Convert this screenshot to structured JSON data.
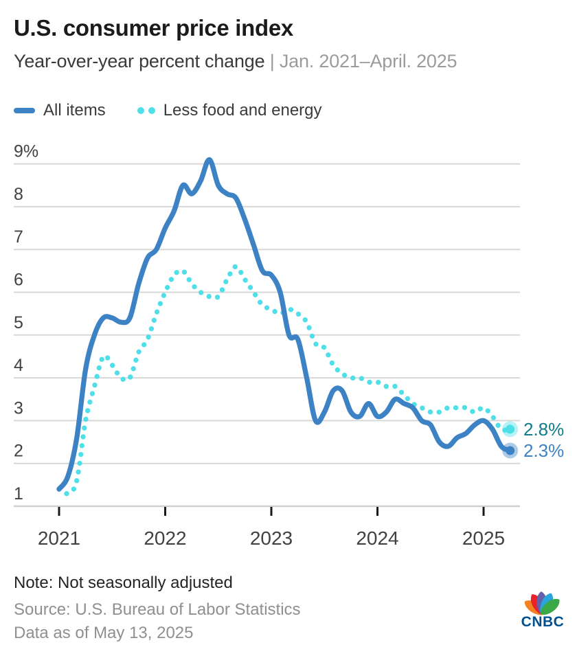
{
  "header": {
    "title": "U.S. consumer price index",
    "subtitle": "Year-over-year percent change",
    "subtitle_separator": " | ",
    "subtitle_range": "Jan. 2021–April. 2025"
  },
  "legend": {
    "items": [
      {
        "label": "All items",
        "color": "#3D82C4",
        "swatch": "line"
      },
      {
        "label": "Less food and energy",
        "color": "#4EDFE8",
        "swatch": "dots"
      }
    ]
  },
  "chart_data": {
    "type": "line",
    "title": "U.S. consumer price index",
    "ylabel": "Year-over-year percent change (%)",
    "grid": "horizontal",
    "ylim": [
      1,
      9.2
    ],
    "y_ticks": [
      1,
      2,
      3,
      4,
      5,
      6,
      7,
      8,
      9
    ],
    "y_tick_labels": [
      "1",
      "2",
      "3",
      "4",
      "5",
      "6",
      "7",
      "8",
      "9%"
    ],
    "x_tick_labels": [
      "2021",
      "2022",
      "2023",
      "2024",
      "2025"
    ],
    "x": [
      "2021-01",
      "2021-02",
      "2021-03",
      "2021-04",
      "2021-05",
      "2021-06",
      "2021-07",
      "2021-08",
      "2021-09",
      "2021-10",
      "2021-11",
      "2021-12",
      "2022-01",
      "2022-02",
      "2022-03",
      "2022-04",
      "2022-05",
      "2022-06",
      "2022-07",
      "2022-08",
      "2022-09",
      "2022-10",
      "2022-11",
      "2022-12",
      "2023-01",
      "2023-02",
      "2023-03",
      "2023-04",
      "2023-05",
      "2023-06",
      "2023-07",
      "2023-08",
      "2023-09",
      "2023-10",
      "2023-11",
      "2023-12",
      "2024-01",
      "2024-02",
      "2024-03",
      "2024-04",
      "2024-05",
      "2024-06",
      "2024-07",
      "2024-08",
      "2024-09",
      "2024-10",
      "2024-11",
      "2024-12",
      "2025-01",
      "2025-02",
      "2025-03",
      "2025-04"
    ],
    "colors": {
      "grid": "#D8D8D8",
      "axis": "#CFCFCF",
      "tick": "#1A1A1A",
      "tick_label": "#414141"
    },
    "series": [
      {
        "name": "All items",
        "style": "solid",
        "color": "#3D82C4",
        "end_label": "2.3%",
        "end_label_color": "#3D82C4",
        "values": [
          1.4,
          1.7,
          2.6,
          4.2,
          5.0,
          5.4,
          5.4,
          5.3,
          5.4,
          6.2,
          6.8,
          7.0,
          7.5,
          7.9,
          8.5,
          8.3,
          8.6,
          9.1,
          8.5,
          8.3,
          8.2,
          7.7,
          7.1,
          6.5,
          6.4,
          6.0,
          5.0,
          4.9,
          4.0,
          3.0,
          3.2,
          3.7,
          3.7,
          3.2,
          3.1,
          3.4,
          3.1,
          3.2,
          3.5,
          3.4,
          3.3,
          3.0,
          2.9,
          2.5,
          2.4,
          2.6,
          2.7,
          2.9,
          3.0,
          2.8,
          2.4,
          2.3
        ]
      },
      {
        "name": "Less food and energy",
        "style": "dotted",
        "color": "#4EDFE8",
        "end_label": "2.8%",
        "end_label_color": "#0F7D8C",
        "values": [
          1.4,
          1.3,
          1.6,
          3.0,
          3.8,
          4.5,
          4.3,
          4.0,
          4.0,
          4.6,
          4.9,
          5.5,
          6.0,
          6.4,
          6.5,
          6.2,
          6.0,
          5.9,
          5.9,
          6.3,
          6.6,
          6.3,
          6.0,
          5.7,
          5.6,
          5.5,
          5.6,
          5.5,
          5.3,
          4.8,
          4.7,
          4.3,
          4.1,
          4.0,
          4.0,
          3.9,
          3.9,
          3.8,
          3.8,
          3.6,
          3.4,
          3.3,
          3.2,
          3.2,
          3.3,
          3.3,
          3.3,
          3.2,
          3.3,
          3.1,
          2.8,
          2.8
        ]
      }
    ]
  },
  "footer": {
    "note": "Note: Not seasonally adjusted",
    "source": "Source: U.S. Bureau of Labor Statistics",
    "as_of": "Data as of May 13, 2025"
  },
  "logo": {
    "text": "CNBC"
  }
}
